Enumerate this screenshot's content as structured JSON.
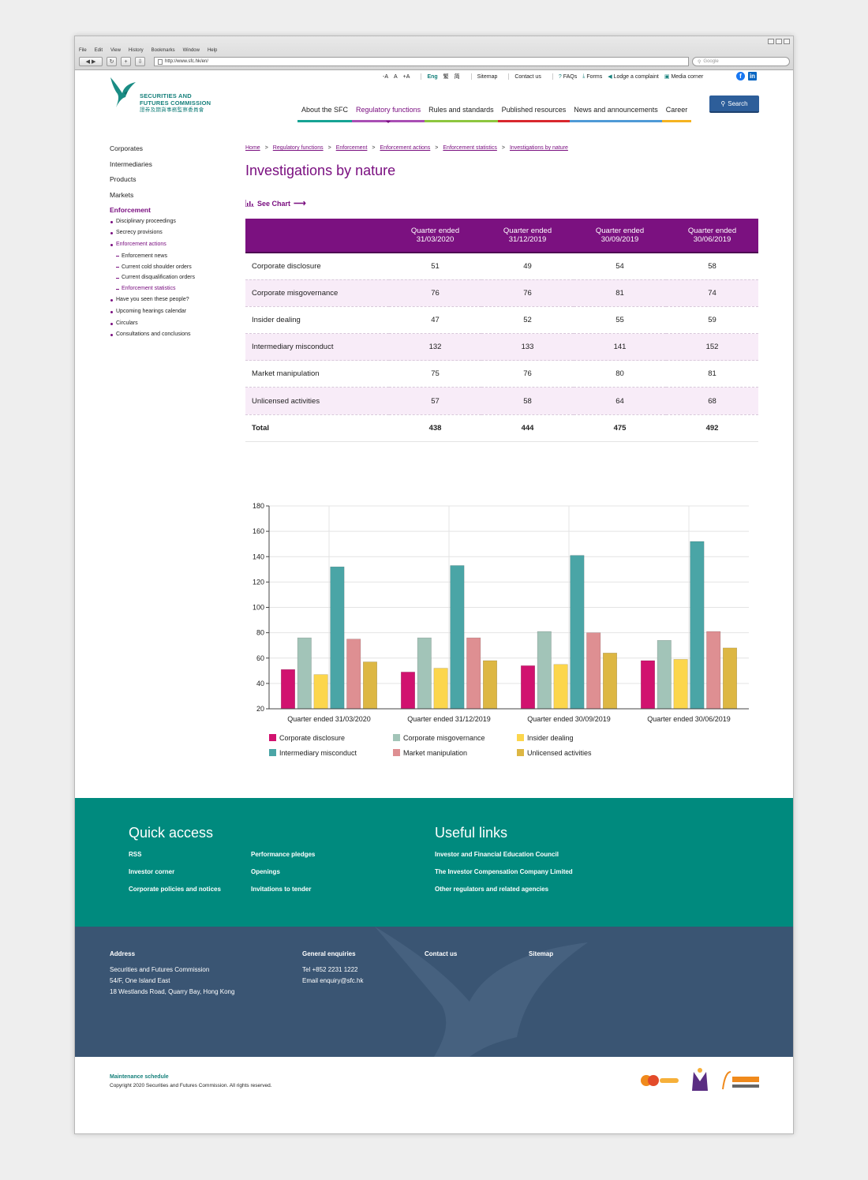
{
  "browser": {
    "menu": [
      "File",
      "Edit",
      "View",
      "History",
      "Bookmarks",
      "Window",
      "Help"
    ],
    "url": "http://www.sfc.hk/en/",
    "search_placeholder": "Google"
  },
  "header": {
    "logo_line1": "SECURITIES AND",
    "logo_line2": "FUTURES COMMISSION",
    "logo_chinese": "證券及期貨事務監察委員會",
    "font_sizes": [
      "-A",
      "A",
      "+A"
    ],
    "lang_eng": "Eng",
    "lang_tc": "繁",
    "lang_sc": "简",
    "sitemap": "Sitemap",
    "contact": "Contact us",
    "faqs": "FAQs",
    "forms": "Forms",
    "complaint": "Lodge a complaint",
    "media": "Media corner",
    "nav": [
      "About the SFC",
      "Regulatory functions",
      "Rules and standards",
      "Published resources",
      "News and announcements",
      "Career"
    ],
    "nav_colors": [
      "#16a394",
      "#a94fb4",
      "#8dc63f",
      "#d8272d",
      "#4f9ad6",
      "#f5b320"
    ],
    "search_label": "Search"
  },
  "sidebar": {
    "top": [
      "Corporates",
      "Intermediaries",
      "Products",
      "Markets"
    ],
    "enforcement": "Enforcement",
    "sub1": [
      "Disciplinary proceedings",
      "Secrecy provisions",
      "Enforcement actions"
    ],
    "sub2": [
      "Enforcement news",
      "Current cold shoulder orders",
      "Current disqualification orders",
      "Enforcement statistics"
    ],
    "sub3": [
      "Have you seen these people?",
      "Upcoming hearings calendar",
      "Circulars",
      "Consultations and conclusions"
    ]
  },
  "breadcrumb": [
    "Home",
    "Regulatory functions",
    "Enforcement",
    "Enforcement actions",
    "Enforcement statistics",
    "Investigations by nature"
  ],
  "page_title": "Investigations by nature",
  "see_chart": "See Chart",
  "table": {
    "headers": [
      "Quarter ended 31/03/2020",
      "Quarter ended 31/12/2019",
      "Quarter ended 30/09/2019",
      "Quarter ended 30/06/2019"
    ],
    "header_top": "Quarter ended",
    "header_dates": [
      "31/03/2020",
      "31/12/2019",
      "30/09/2019",
      "30/06/2019"
    ],
    "rows": [
      {
        "label": "Corporate disclosure",
        "values": [
          51,
          49,
          54,
          58
        ]
      },
      {
        "label": "Corporate misgovernance",
        "values": [
          76,
          76,
          81,
          74
        ]
      },
      {
        "label": "Insider dealing",
        "values": [
          47,
          52,
          55,
          59
        ]
      },
      {
        "label": "Intermediary misconduct",
        "values": [
          132,
          133,
          141,
          152
        ]
      },
      {
        "label": "Market manipulation",
        "values": [
          75,
          76,
          80,
          81
        ]
      },
      {
        "label": "Unlicensed activities",
        "values": [
          57,
          58,
          64,
          68
        ]
      }
    ],
    "total_label": "Total",
    "totals": [
      438,
      444,
      475,
      492
    ]
  },
  "chart_data": {
    "type": "bar",
    "categories": [
      "Quarter ended 31/03/2020",
      "Quarter ended 31/12/2019",
      "Quarter ended 30/09/2019",
      "Quarter ended 30/06/2019"
    ],
    "series": [
      {
        "name": "Corporate disclosure",
        "color": "#d1126f",
        "values": [
          51,
          49,
          54,
          58
        ]
      },
      {
        "name": "Corporate misgovernance",
        "color": "#a2c4b8",
        "values": [
          76,
          76,
          81,
          74
        ]
      },
      {
        "name": "Insider dealing",
        "color": "#fcd64c",
        "values": [
          47,
          52,
          55,
          59
        ]
      },
      {
        "name": "Intermediary misconduct",
        "color": "#4aa5a6",
        "values": [
          132,
          133,
          141,
          152
        ]
      },
      {
        "name": "Market manipulation",
        "color": "#de8f92",
        "values": [
          75,
          76,
          80,
          81
        ]
      },
      {
        "name": "Unlicensed activities",
        "color": "#ddb743",
        "values": [
          57,
          58,
          64,
          68
        ]
      }
    ],
    "ylim": [
      20,
      180
    ],
    "yticks": [
      20,
      40,
      60,
      80,
      100,
      120,
      140,
      160,
      180
    ],
    "legend": "bottom",
    "title": "",
    "xlabel": "",
    "ylabel": ""
  },
  "footer": {
    "quick_access_title": "Quick access",
    "quick_links_col1": [
      "RSS",
      "Investor corner",
      "Corporate policies and notices"
    ],
    "quick_links_col2": [
      "Performance pledges",
      "Openings",
      "Invitations to tender"
    ],
    "useful_links_title": "Useful links",
    "useful_links": [
      "Investor and Financial Education Council",
      "The Investor Compensation Company Limited",
      "Other regulators and related agencies"
    ],
    "address_title": "Address",
    "address_lines": [
      "Securities and Futures Commission",
      "54/F, One Island East",
      "18 Westlands Road, Quarry Bay, Hong Kong"
    ],
    "enquiries_title": "General enquiries",
    "tel": "Tel +852 2231 1222",
    "email": "Email enquiry@sfc.hk",
    "contact": "Contact us",
    "sitemap": "Sitemap",
    "maintenance": "Maintenance schedule",
    "copyright": "Copyright 2020 Securities and Futures Commission. All rights reserved."
  }
}
